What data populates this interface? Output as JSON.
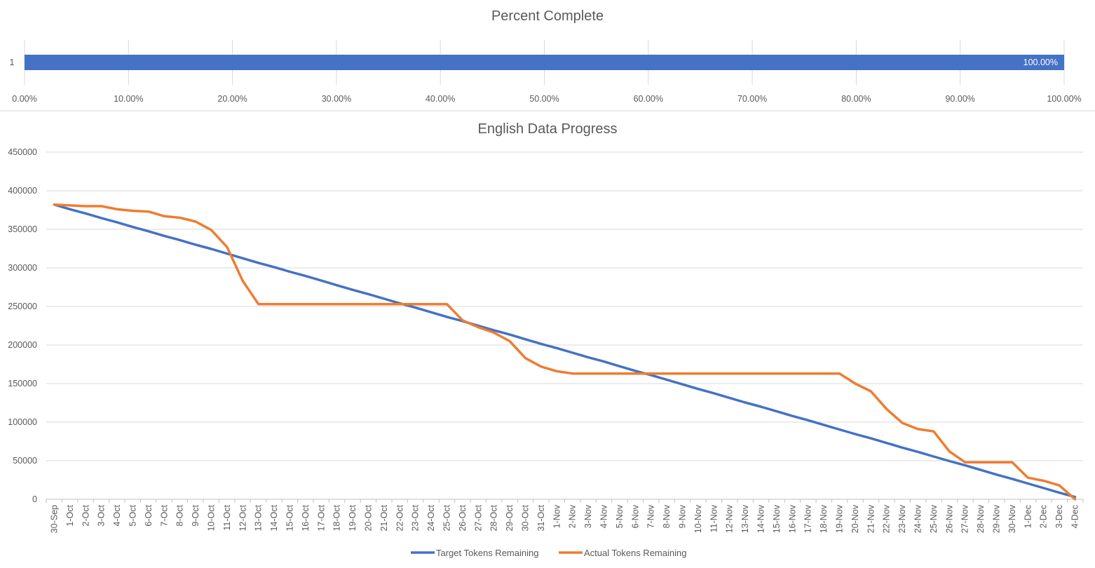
{
  "chart_data": [
    {
      "type": "bar",
      "orientation": "horizontal",
      "title": "Percent Complete",
      "categories": [
        "1"
      ],
      "values": [
        1.0
      ],
      "data_labels": [
        "100.00%"
      ],
      "xlim": [
        0,
        1
      ],
      "x_ticks": [
        "0.00%",
        "10.00%",
        "20.00%",
        "30.00%",
        "40.00%",
        "50.00%",
        "60.00%",
        "70.00%",
        "80.00%",
        "90.00%",
        "100.00%"
      ],
      "grid": true,
      "colors": {
        "bar": "#4472C4"
      }
    },
    {
      "type": "line",
      "title": "English Data Progress",
      "x": [
        "30-Sep",
        "1-Oct",
        "2-Oct",
        "3-Oct",
        "4-Oct",
        "5-Oct",
        "6-Oct",
        "7-Oct",
        "8-Oct",
        "9-Oct",
        "10-Oct",
        "11-Oct",
        "12-Oct",
        "13-Oct",
        "14-Oct",
        "15-Oct",
        "16-Oct",
        "17-Oct",
        "18-Oct",
        "19-Oct",
        "20-Oct",
        "21-Oct",
        "22-Oct",
        "23-Oct",
        "24-Oct",
        "25-Oct",
        "26-Oct",
        "27-Oct",
        "28-Oct",
        "29-Oct",
        "30-Oct",
        "31-Oct",
        "1-Nov",
        "2-Nov",
        "3-Nov",
        "4-Nov",
        "5-Nov",
        "6-Nov",
        "7-Nov",
        "8-Nov",
        "9-Nov",
        "10-Nov",
        "11-Nov",
        "12-Nov",
        "13-Nov",
        "14-Nov",
        "15-Nov",
        "16-Nov",
        "17-Nov",
        "18-Nov",
        "19-Nov",
        "20-Nov",
        "21-Nov",
        "22-Nov",
        "23-Nov",
        "24-Nov",
        "25-Nov",
        "26-Nov",
        "27-Nov",
        "28-Nov",
        "29-Nov",
        "30-Nov",
        "1-Dec",
        "2-Dec",
        "3-Dec",
        "4-Dec"
      ],
      "y_ticks": [
        "0",
        "50000",
        "100000",
        "150000",
        "200000",
        "250000",
        "300000",
        "350000",
        "400000",
        "450000"
      ],
      "ylim": [
        0,
        450000
      ],
      "grid": true,
      "legend": "bottom",
      "series": [
        {
          "name": "Target Tokens Remaining",
          "color": "#4472C4",
          "values": [
            382000,
            376000,
            370500,
            364500,
            359000,
            353000,
            347500,
            341500,
            336000,
            330000,
            324500,
            318500,
            312500,
            306500,
            301000,
            295000,
            289500,
            283500,
            277500,
            271500,
            266000,
            260000,
            254000,
            248500,
            242500,
            236500,
            231000,
            225000,
            219000,
            213500,
            207500,
            201500,
            196000,
            190000,
            184000,
            178500,
            172500,
            166500,
            161000,
            155000,
            149000,
            143000,
            137500,
            131500,
            125500,
            120000,
            114000,
            108000,
            102500,
            96500,
            90500,
            84500,
            79000,
            73000,
            67000,
            61500,
            55500,
            49500,
            44000,
            38000,
            32000,
            26500,
            20500,
            14500,
            8500,
            3000
          ]
        },
        {
          "name": "Actual Tokens Remaining",
          "color": "#ED7D31",
          "values": [
            382000,
            381000,
            380000,
            380000,
            376000,
            374000,
            373000,
            367000,
            365000,
            360000,
            349000,
            327000,
            283000,
            253000,
            253000,
            253000,
            253000,
            253000,
            253000,
            253000,
            253000,
            253000,
            253000,
            253000,
            253000,
            253000,
            232000,
            223000,
            216000,
            205000,
            183000,
            172000,
            166000,
            163000,
            163000,
            163000,
            163000,
            163000,
            163000,
            163000,
            163000,
            163000,
            163000,
            163000,
            163000,
            163000,
            163000,
            163000,
            163000,
            163000,
            163000,
            150000,
            140000,
            117000,
            99000,
            91000,
            88000,
            62000,
            48000,
            48000,
            48000,
            48000,
            28000,
            24000,
            18000,
            0
          ]
        }
      ]
    }
  ]
}
